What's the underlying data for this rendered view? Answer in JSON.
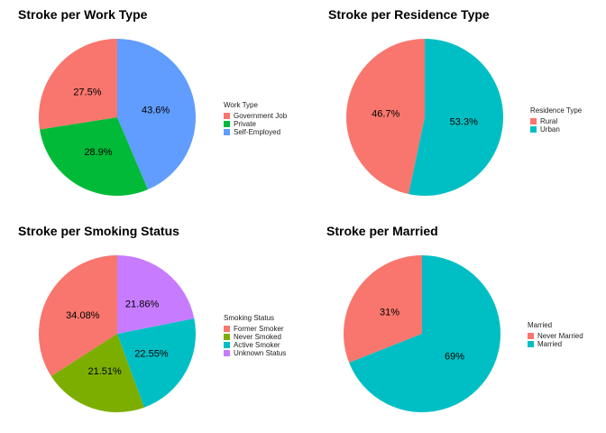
{
  "chart_data": [
    {
      "type": "pie",
      "title": "Stroke per Work Type",
      "legend_title": "Work Type",
      "legend_position": "right",
      "categories": [
        "Government Job",
        "Private",
        "Self-Employed"
      ],
      "values": [
        27.5,
        28.9,
        43.6
      ],
      "labels": [
        "27.5%",
        "28.9%",
        "43.6%"
      ],
      "colors": [
        "#F8766D",
        "#00BA38",
        "#619CFF"
      ]
    },
    {
      "type": "pie",
      "title": "Stroke per Residence Type",
      "legend_title": "Residence Type",
      "legend_position": "right",
      "categories": [
        "Rural",
        "Urban"
      ],
      "values": [
        46.7,
        53.3
      ],
      "labels": [
        "46.7%",
        "53.3%"
      ],
      "colors": [
        "#F8766D",
        "#00BFC4"
      ]
    },
    {
      "type": "pie",
      "title": "Stroke per Smoking Status",
      "legend_title": "Smoking Status",
      "legend_position": "right",
      "categories": [
        "Former Smoker",
        "Never Smoked",
        "Active Smoker",
        "Unknown Status"
      ],
      "values": [
        34.08,
        21.51,
        22.55,
        21.86
      ],
      "labels": [
        "34.08%",
        "21.51%",
        "22.55%",
        "21.86%"
      ],
      "colors": [
        "#F8766D",
        "#7CAE00",
        "#00BFC4",
        "#C77CFF"
      ]
    },
    {
      "type": "pie",
      "title": "Stroke per Married",
      "legend_title": "Married",
      "legend_position": "right",
      "categories": [
        "Never Married",
        "Married"
      ],
      "values": [
        31,
        69
      ],
      "labels": [
        "31%",
        "69%"
      ],
      "colors": [
        "#F8766D",
        "#00BFC4"
      ]
    }
  ]
}
